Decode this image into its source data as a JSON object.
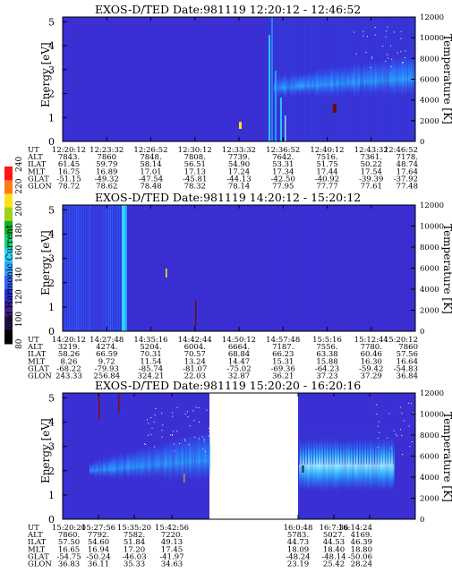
{
  "colors": {
    "background_blue": "#3a2fd2",
    "grid_blue": "#2f7dff",
    "cyan": "#26c7ff",
    "white": "#ffffff",
    "text": "#000000"
  },
  "colorbar": {
    "label": "Second Harmonic Current",
    "ticks": [
      "80",
      "100",
      "120",
      "140",
      "160",
      "180",
      "200",
      "220",
      "240"
    ],
    "colors": [
      "#000000",
      "#221144",
      "#3d1f8a",
      "#2b2bd6",
      "#2d63ff",
      "#2aa3ff",
      "#28d1ff",
      "#11d37a",
      "#10b12a",
      "#a2d019",
      "#ffe21b",
      "#ff7a15",
      "#ff1616"
    ]
  },
  "panels": [
    {
      "title": "EXOS-D/TED   Date:981119   12:20:12 - 12:46:52",
      "ylabel": "Energy [eV]",
      "ylabel_right": "Temperature [K]",
      "yticks": [
        "0",
        "1",
        "2",
        "3",
        "4",
        "5"
      ],
      "yticks_right": [
        "0",
        "2000",
        "4000",
        "6000",
        "8000",
        "10000",
        "12000"
      ],
      "ephemeris": {
        "labels": [
          "UT",
          "ALT",
          "ILAT",
          "MLT",
          "GLAT",
          "GLON"
        ],
        "columns": [
          [
            "12:20:12",
            "7843.",
            "61.45",
            "16.75",
            "-51.15",
            "78.72"
          ],
          [
            "12:23:32",
            "7860",
            "59.79",
            "16.89",
            "-49.32",
            "78.62"
          ],
          [
            "12:26:52",
            "7848.",
            "58.14",
            "17.01",
            "-47.54",
            "78.48"
          ],
          [
            "12:30:12",
            "7808.",
            "56.51",
            "17.13",
            "-45.81",
            "78.32"
          ],
          [
            "12:33:32",
            "7739.",
            "54.90",
            "17.24",
            "-44.13",
            "78.14"
          ],
          [
            "12:36:52",
            "7642.",
            "53.31",
            "17.34",
            "-42.50",
            "77.95"
          ],
          [
            "12:40:12",
            "7516.",
            "51.75",
            "17.44",
            "-40.92",
            "77.77"
          ],
          [
            "12:43:32",
            "7361.",
            "50.22",
            "17.54",
            "-39.39",
            "77.61"
          ],
          [
            "12:46:52",
            "7178.",
            "48.74",
            "17.64",
            "-37.92",
            "77.48"
          ]
        ]
      }
    },
    {
      "title": "EXOS-D/TED   Date:981119   14:20:12 - 15:20:12",
      "ylabel": "Energy [eV]",
      "ylabel_right": "Temperature [K]",
      "yticks": [
        "0",
        "1",
        "2",
        "3",
        "4",
        "5"
      ],
      "yticks_right": [
        "0",
        "2000",
        "4000",
        "6000",
        "8000",
        "10000",
        "12000"
      ],
      "ephemeris": {
        "labels": [
          "UT",
          "ALT",
          "ILAT",
          "MLT",
          "GLAT",
          "GLON"
        ],
        "columns": [
          [
            "14:20:12",
            "3219.",
            "58.26",
            "8.26",
            "-68.22",
            "243.33"
          ],
          [
            "14:27:48",
            "4274.",
            "66.59",
            "9.72",
            "-79.93",
            "256.84"
          ],
          [
            "14:35:16",
            "5204.",
            "70.31",
            "11.54",
            "-85.74",
            "324.21"
          ],
          [
            "14:42:44",
            "6004.",
            "70.57",
            "13.24",
            "-81.07",
            "22.03"
          ],
          [
            "14:50:12",
            "6664.",
            "68.84",
            "14.47",
            "-75.02",
            "32.87"
          ],
          [
            "14:57:48",
            "7187.",
            "66.23",
            "15.31",
            "-69.36",
            "36.21"
          ],
          [
            "15:5:16",
            "7556.",
            "63.38",
            "15.88",
            "-64.23",
            "37.23"
          ],
          [
            "15:12:44",
            "7780.",
            "60.46",
            "16.30",
            "-59.42",
            "37.29"
          ],
          [
            "15:20:12",
            "7860",
            "57.56",
            "16.64",
            "-54.83",
            "36.84"
          ]
        ]
      }
    },
    {
      "title": "EXOS-D/TED   Date:981119   15:20:20 - 16:20:16",
      "ylabel": "Energy [eV]",
      "ylabel_right": "Temperature [K]",
      "yticks": [
        "0",
        "1",
        "2",
        "3",
        "4",
        "5"
      ],
      "yticks_right": [
        "0",
        "2000",
        "4000",
        "6000",
        "8000",
        "10000",
        "12000"
      ],
      "ephemeris": {
        "labels": [
          "UT",
          "ALT",
          "ILAT",
          "MLT",
          "GLAT",
          "GLON"
        ],
        "columns": [
          [
            "15:20:20",
            "7860.",
            "57.50",
            "16.65",
            "-54.75",
            "36.83"
          ],
          [
            "15:27:56",
            "7792.",
            "54.60",
            "16.94",
            "-50.24",
            "36.11"
          ],
          [
            "15:35:20",
            "7582.",
            "51.84",
            "17.20",
            "-46.03",
            "35.33"
          ],
          [
            "15:42:56",
            "7220.",
            "49.13",
            "17.45",
            "-41.97",
            "34.63"
          ],
          [
            "16:0:48",
            "5783.",
            "44.73",
            "18.09",
            "-48.24",
            "23.19"
          ],
          [
            "16:7:36",
            "5027.",
            "44.53",
            "18.40",
            "-48.14",
            "25.42"
          ],
          [
            "16:14:24",
            "4169.",
            "46.39",
            "18.80",
            "-50.06",
            "28.24"
          ]
        ]
      }
    }
  ],
  "chart_data": [
    {
      "type": "heatmap",
      "title": "EXOS-D/TED   Date:981119   12:20:12 - 12:46:52",
      "xlabel": "UT",
      "ylabel": "Energy [eV]",
      "ylabel_right": "Temperature [K]",
      "ylim": [
        0,
        5
      ],
      "ylim_right": [
        0,
        12000
      ],
      "x_ticks": [
        "12:20:12",
        "12:23:32",
        "12:26:52",
        "12:30:12",
        "12:33:32",
        "12:36:52",
        "12:40:12",
        "12:43:32",
        "12:46:52"
      ],
      "features": [
        {
          "kind": "spike",
          "ut": "12:36:20",
          "energy_range": [
            0,
            5.0
          ],
          "level": "cyan"
        },
        {
          "kind": "band",
          "ut_range": [
            "12:37:00",
            "12:46:52"
          ],
          "energy_range": [
            1.8,
            3.6
          ],
          "level": "blue-cyan"
        },
        {
          "kind": "spot",
          "ut": "12:32:40",
          "energy": 0.8,
          "level": "yellow"
        },
        {
          "kind": "spot",
          "ut": "12:39:40",
          "energy": 1.7,
          "level": "dark red"
        }
      ]
    },
    {
      "type": "heatmap",
      "title": "EXOS-D/TED   Date:981119   14:20:12 - 15:20:12",
      "xlabel": "UT",
      "ylabel": "Energy [eV]",
      "ylabel_right": "Temperature [K]",
      "ylim": [
        0,
        5
      ],
      "ylim_right": [
        0,
        12000
      ],
      "x_ticks": [
        "14:20:12",
        "14:27:48",
        "14:35:16",
        "14:42:44",
        "14:50:12",
        "14:57:48",
        "15:5:16",
        "15:12:44",
        "15:20:12"
      ],
      "features": [
        {
          "kind": "striations",
          "ut_range": [
            "14:20:12",
            "14:31:00"
          ],
          "energy_range": [
            0,
            5
          ],
          "level": "blue"
        },
        {
          "kind": "spike",
          "ut": "14:32:40",
          "energy_range": [
            0,
            5
          ],
          "level": "cyan"
        },
        {
          "kind": "spot",
          "ut": "14:38:30",
          "energy": 2.2,
          "level": "yellow"
        }
      ]
    },
    {
      "type": "heatmap",
      "title": "EXOS-D/TED   Date:981119   15:20:20 - 16:20:16",
      "xlabel": "UT",
      "ylabel": "Energy [eV]",
      "ylabel_right": "Temperature [K]",
      "ylim": [
        0,
        5
      ],
      "ylim_right": [
        0,
        12000
      ],
      "x_ticks": [
        "15:20:20",
        "15:27:56",
        "15:35:20",
        "15:42:56",
        "16:0:48",
        "16:7:36",
        "16:14:24"
      ],
      "data_gap": [
        "15:45:00",
        "16:00:00"
      ],
      "features": [
        {
          "kind": "band",
          "ut_range": [
            "15:26:00",
            "15:44:00"
          ],
          "energy_range": [
            1.5,
            3.2
          ],
          "level": "blue-cyan"
        },
        {
          "kind": "band",
          "ut_range": [
            "16:00:30",
            "16:14:00"
          ],
          "energy_range": [
            1.3,
            3.1
          ],
          "level": "cyan"
        },
        {
          "kind": "sparkles",
          "ut_range": [
            "15:35:00",
            "15:44:00"
          ],
          "energy_range": [
            3.0,
            5.0
          ],
          "level": "white"
        }
      ]
    }
  ]
}
